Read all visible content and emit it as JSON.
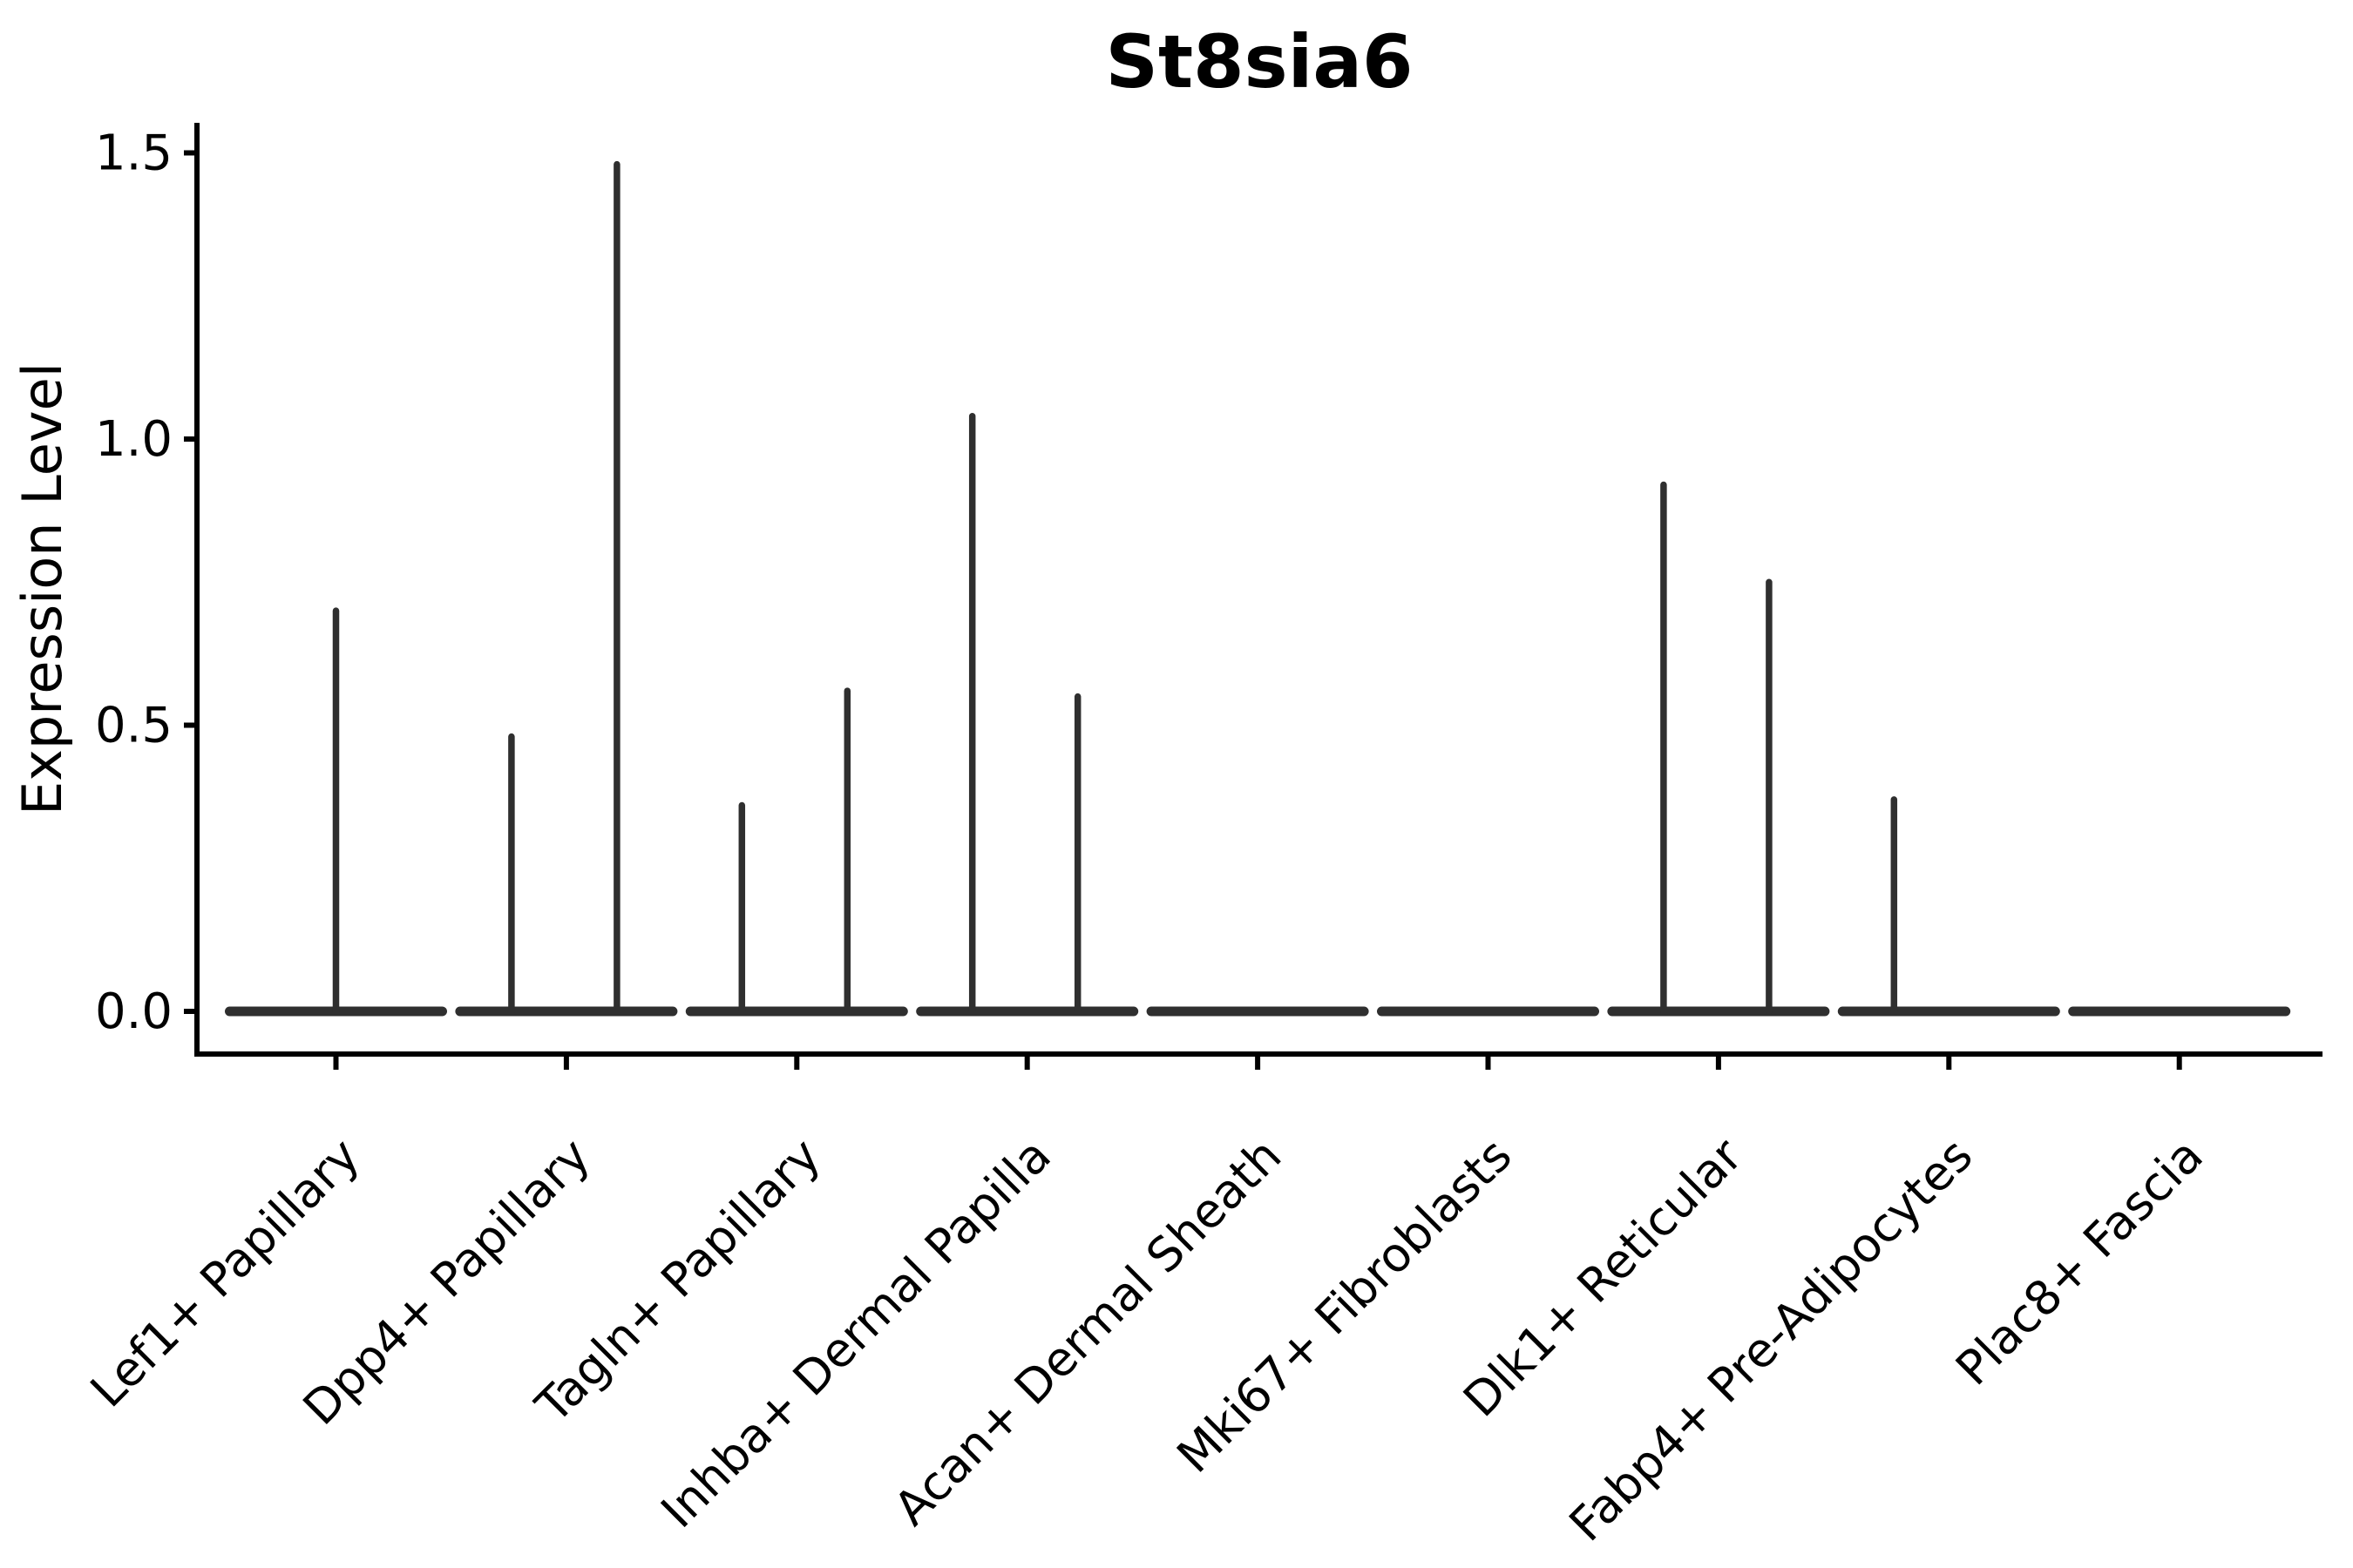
{
  "chart_data": {
    "type": "violin",
    "title": "St8sia6",
    "xlabel": "",
    "ylabel": "Expression Level",
    "yticks": [
      0.0,
      0.5,
      1.0,
      1.5
    ],
    "ytick_labels": [
      "0.0",
      "0.5",
      "1.0",
      "1.5"
    ],
    "ylim": [
      -0.07,
      1.55
    ],
    "grid": false,
    "legend": false,
    "categories": [
      "Lef1+ Papillary",
      "Dpp4+ Papillary",
      "Tagln+ Papillary",
      "Inhba+ Dermal Papilla",
      "Acan+ Dermal Sheath",
      "Mki67+ Fibroblasts",
      "Dlk1+ Reticular",
      "Fabp4+ Pre-Adipocytes",
      "Plac8+ Fascia"
    ],
    "violins": [
      {
        "category": "Lef1+ Papillary",
        "baseline_value": 0.0,
        "spikes": [
          {
            "side": "center",
            "max_expression": 0.7
          }
        ]
      },
      {
        "category": "Dpp4+ Papillary",
        "baseline_value": 0.0,
        "spikes": [
          {
            "side": "left",
            "max_expression": 0.48
          },
          {
            "side": "right",
            "max_expression": 1.48
          }
        ]
      },
      {
        "category": "Tagln+ Papillary",
        "baseline_value": 0.0,
        "spikes": [
          {
            "side": "left",
            "max_expression": 0.36
          },
          {
            "side": "right",
            "max_expression": 0.56
          }
        ]
      },
      {
        "category": "Inhba+ Dermal Papilla",
        "baseline_value": 0.0,
        "spikes": [
          {
            "side": "left",
            "max_expression": 1.04
          },
          {
            "side": "right",
            "max_expression": 0.55
          }
        ]
      },
      {
        "category": "Acan+ Dermal Sheath",
        "baseline_value": 0.0,
        "spikes": []
      },
      {
        "category": "Mki67+ Fibroblasts",
        "baseline_value": 0.0,
        "spikes": []
      },
      {
        "category": "Dlk1+ Reticular",
        "baseline_value": 0.0,
        "spikes": [
          {
            "side": "left",
            "max_expression": 0.92
          },
          {
            "side": "right",
            "max_expression": 0.75
          }
        ]
      },
      {
        "category": "Fabp4+ Pre-Adipocytes",
        "baseline_value": 0.0,
        "spikes": [
          {
            "side": "left",
            "max_expression": 0.37
          }
        ]
      },
      {
        "category": "Plac8+ Fascia",
        "baseline_value": 0.0,
        "spikes": []
      }
    ],
    "colors": {
      "violin_line": "#2f2f2f",
      "axis": "#000000",
      "background": "#ffffff"
    }
  }
}
